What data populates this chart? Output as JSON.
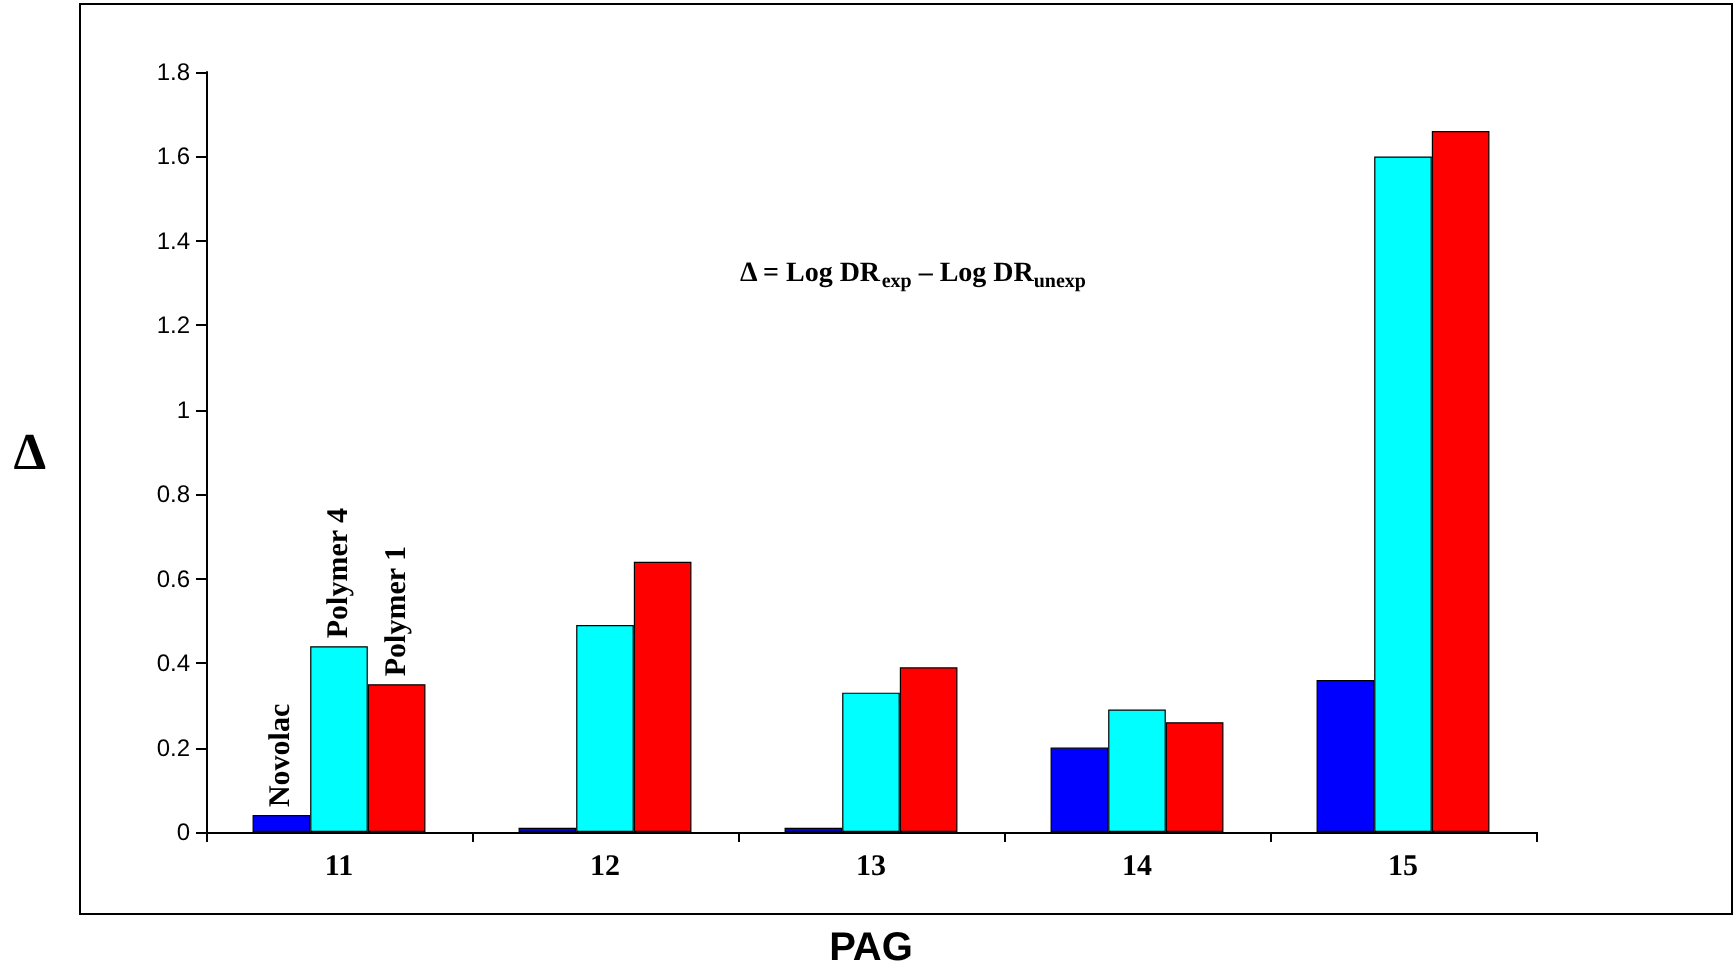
{
  "chart_data": {
    "type": "bar",
    "xlabel": "PAG",
    "ylabel": "Δ",
    "categories": [
      "11",
      "12",
      "13",
      "14",
      "15"
    ],
    "series": [
      {
        "name": "Novolac",
        "color": "#0000ff",
        "values": [
          0.04,
          0.01,
          0.01,
          0.2,
          0.36
        ]
      },
      {
        "name": "Polymer 4",
        "color": "#00ffff",
        "values": [
          0.44,
          0.49,
          0.33,
          0.29,
          1.6
        ]
      },
      {
        "name": "Polymer 1",
        "color": "#ff0000",
        "values": [
          0.35,
          0.64,
          0.39,
          0.26,
          1.66
        ]
      }
    ],
    "ylim": [
      0,
      1.8
    ],
    "yticks": [
      0,
      0.2,
      0.4,
      0.6,
      0.8,
      1,
      1.2,
      1.4,
      1.6,
      1.8
    ],
    "grid": false,
    "legend": false,
    "annotations": [
      "Δ = Log DR$_{exp}$ – Log DR$_{unexp}$"
    ]
  }
}
